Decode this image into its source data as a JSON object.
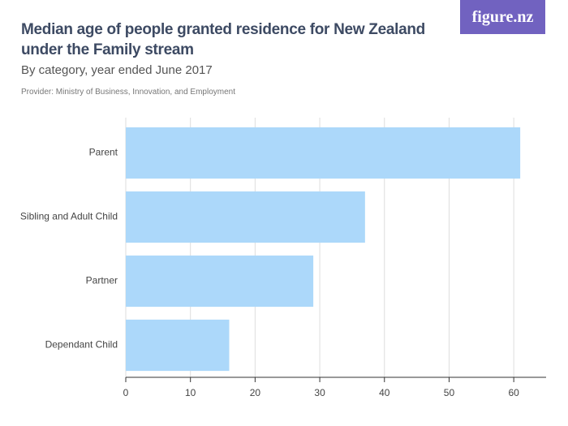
{
  "brand": "figure.nz",
  "chart_data": {
    "type": "bar",
    "orientation": "horizontal",
    "title": "Median age of people granted residence for New Zealand under the Family stream",
    "subtitle": "By category, year ended June 2017",
    "provider": "Provider: Ministry of Business, Innovation, and Employment",
    "categories": [
      "Parent",
      "Sibling and Adult Child",
      "Partner",
      "Dependant Child"
    ],
    "values": [
      61,
      37,
      29,
      16
    ],
    "color": "#acd8fa",
    "xlim": [
      0,
      65
    ],
    "xticks": [
      0,
      10,
      20,
      30,
      40,
      50,
      60
    ],
    "grid": true
  }
}
